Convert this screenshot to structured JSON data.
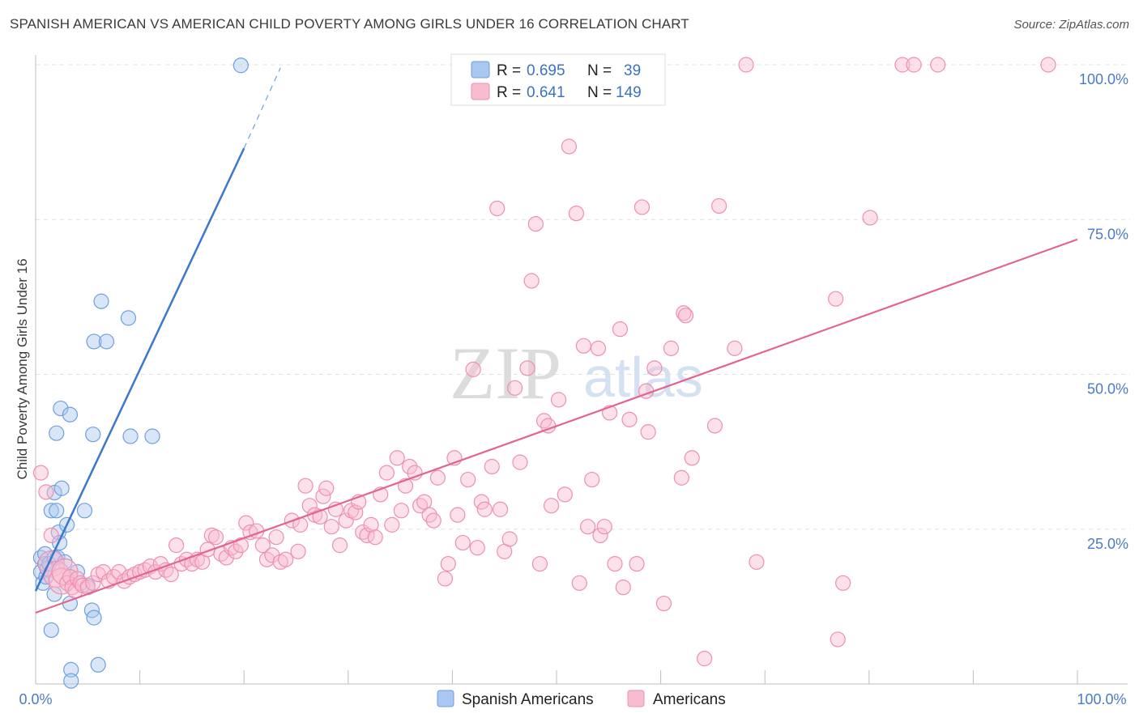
{
  "title": "SPANISH AMERICAN VS AMERICAN CHILD POVERTY AMONG GIRLS UNDER 16 CORRELATION CHART",
  "source": "Source: ZipAtlas.com",
  "watermark": {
    "zip": "ZIP",
    "atlas": "atlas"
  },
  "legend_box": {
    "rows": [
      {
        "r_label": "R =",
        "r_value": "0.695",
        "n_label": "N =",
        "n_value": "39",
        "color": "#a9c7f0",
        "stroke": "#6f9fde"
      },
      {
        "r_label": "R =",
        "r_value": "0.641",
        "n_label": "N =",
        "n_value": "149",
        "color": "#f8bcd0",
        "stroke": "#ee8fb0"
      }
    ]
  },
  "bottom_legend": [
    {
      "label": "Spanish Americans",
      "color": "#a9c7f0",
      "stroke": "#6f9fde"
    },
    {
      "label": "Americans",
      "color": "#f8bcd0",
      "stroke": "#ee8fb0"
    }
  ],
  "chart_data": {
    "type": "scatter",
    "title": "SPANISH AMERICAN VS AMERICAN CHILD POVERTY AMONG GIRLS UNDER 16 CORRELATION CHART",
    "xlabel": "",
    "ylabel": "Child Poverty Among Girls Under 16",
    "xlim": [
      0,
      100
    ],
    "ylim": [
      0,
      100
    ],
    "x_tick_labels": [
      "0.0%",
      "100.0%"
    ],
    "y_tick_labels": [
      "25.0%",
      "50.0%",
      "75.0%",
      "100.0%"
    ],
    "y_ticks": [
      25,
      50,
      75,
      100
    ],
    "grid": "horizontal dashed",
    "legend": "top-center",
    "series": [
      {
        "name": "Spanish Americans",
        "color": "#6f9fde",
        "fill": "#a9c7f0",
        "trend": {
          "x": [
            0,
            20
          ],
          "y": [
            15.0,
            86.5
          ],
          "dashed_to": [
            23.5,
            99.5
          ]
        },
        "points": [
          [
            0.5,
            20.4
          ],
          [
            0.5,
            18.1
          ],
          [
            0.7,
            16.3
          ],
          [
            0.9,
            19.4
          ],
          [
            0.9,
            21.0
          ],
          [
            1.0,
            17.3
          ],
          [
            1.1,
            18.6
          ],
          [
            1.3,
            19.4
          ],
          [
            1.5,
            8.7
          ],
          [
            1.5,
            28.0
          ],
          [
            1.8,
            20.4
          ],
          [
            1.8,
            14.5
          ],
          [
            1.8,
            30.9
          ],
          [
            2.0,
            40.5
          ],
          [
            2.0,
            28.0
          ],
          [
            2.1,
            20.4
          ],
          [
            2.2,
            24.5
          ],
          [
            2.3,
            22.8
          ],
          [
            2.4,
            44.5
          ],
          [
            2.5,
            31.6
          ],
          [
            2.8,
            19.7
          ],
          [
            3.0,
            25.7
          ],
          [
            3.3,
            43.5
          ],
          [
            3.3,
            13.0
          ],
          [
            3.4,
            2.3
          ],
          [
            3.4,
            0.5
          ],
          [
            4.0,
            18.1
          ],
          [
            4.7,
            28.0
          ],
          [
            5.0,
            15.9
          ],
          [
            5.4,
            11.9
          ],
          [
            5.5,
            40.3
          ],
          [
            5.6,
            10.7
          ],
          [
            5.6,
            55.3
          ],
          [
            6.0,
            3.1
          ],
          [
            6.3,
            61.8
          ],
          [
            6.8,
            55.3
          ],
          [
            8.9,
            59.1
          ],
          [
            9.1,
            40.0
          ],
          [
            11.2,
            40.0
          ],
          [
            19.7,
            99.9
          ]
        ]
      },
      {
        "name": "Americans",
        "color": "#ee8fb0",
        "fill": "#f8bcd0",
        "trend": {
          "x": [
            0,
            100
          ],
          "y": [
            11.5,
            71.8
          ]
        },
        "points": [
          [
            0.5,
            34.1
          ],
          [
            1.0,
            31.0
          ],
          [
            1.5,
            19.4
          ],
          [
            1.5,
            24.0
          ],
          [
            2.0,
            17.7
          ],
          [
            2.5,
            16.6
          ],
          [
            2.8,
            18.1
          ],
          [
            3.0,
            16.3
          ],
          [
            3.3,
            17.3
          ],
          [
            3.5,
            15.6
          ],
          [
            3.8,
            15.0
          ],
          [
            4.0,
            17.0
          ],
          [
            4.3,
            16.3
          ],
          [
            4.5,
            15.9
          ],
          [
            5.0,
            15.6
          ],
          [
            5.5,
            16.3
          ],
          [
            6.0,
            17.7
          ],
          [
            6.5,
            18.1
          ],
          [
            7.0,
            16.6
          ],
          [
            7.5,
            17.3
          ],
          [
            8.0,
            18.1
          ],
          [
            8.5,
            16.6
          ],
          [
            9.0,
            17.3
          ],
          [
            9.5,
            17.7
          ],
          [
            10.0,
            18.1
          ],
          [
            10.5,
            18.4
          ],
          [
            11.0,
            19.0
          ],
          [
            11.5,
            18.1
          ],
          [
            12.0,
            19.4
          ],
          [
            12.5,
            18.4
          ],
          [
            13.0,
            17.7
          ],
          [
            13.5,
            22.4
          ],
          [
            14.0,
            19.4
          ],
          [
            14.5,
            20.1
          ],
          [
            15.0,
            19.4
          ],
          [
            15.5,
            20.1
          ],
          [
            16.0,
            19.7
          ],
          [
            16.5,
            21.7
          ],
          [
            16.9,
            24.0
          ],
          [
            17.3,
            23.7
          ],
          [
            17.8,
            21.0
          ],
          [
            18.3,
            20.4
          ],
          [
            18.8,
            22.0
          ],
          [
            19.2,
            21.4
          ],
          [
            19.7,
            22.4
          ],
          [
            20.2,
            26.0
          ],
          [
            20.6,
            24.5
          ],
          [
            21.2,
            24.7
          ],
          [
            21.8,
            22.4
          ],
          [
            22.2,
            20.1
          ],
          [
            22.7,
            20.8
          ],
          [
            23.1,
            23.7
          ],
          [
            23.5,
            19.7
          ],
          [
            24.0,
            20.1
          ],
          [
            24.6,
            26.4
          ],
          [
            25.2,
            21.4
          ],
          [
            25.4,
            25.7
          ],
          [
            25.9,
            32.0
          ],
          [
            26.3,
            28.8
          ],
          [
            26.8,
            27.3
          ],
          [
            27.3,
            27.0
          ],
          [
            27.6,
            30.3
          ],
          [
            27.9,
            31.6
          ],
          [
            28.4,
            25.4
          ],
          [
            28.8,
            28.2
          ],
          [
            29.2,
            22.4
          ],
          [
            29.8,
            26.4
          ],
          [
            30.3,
            28.0
          ],
          [
            30.7,
            27.7
          ],
          [
            31.0,
            29.4
          ],
          [
            31.4,
            24.5
          ],
          [
            31.8,
            24.0
          ],
          [
            32.2,
            25.7
          ],
          [
            32.6,
            23.7
          ],
          [
            33.1,
            30.6
          ],
          [
            33.7,
            34.1
          ],
          [
            34.2,
            25.7
          ],
          [
            34.7,
            36.5
          ],
          [
            35.1,
            28.0
          ],
          [
            35.5,
            32.0
          ],
          [
            35.9,
            35.1
          ],
          [
            36.4,
            34.1
          ],
          [
            36.9,
            28.8
          ],
          [
            37.3,
            29.4
          ],
          [
            37.8,
            27.3
          ],
          [
            38.2,
            26.4
          ],
          [
            38.6,
            33.3
          ],
          [
            39.3,
            17.0
          ],
          [
            39.6,
            19.4
          ],
          [
            40.2,
            36.5
          ],
          [
            40.5,
            27.3
          ],
          [
            41.0,
            22.8
          ],
          [
            41.5,
            33.0
          ],
          [
            42.0,
            50.8
          ],
          [
            42.4,
            22.0
          ],
          [
            42.8,
            29.4
          ],
          [
            43.1,
            28.2
          ],
          [
            43.8,
            35.1
          ],
          [
            44.3,
            76.8
          ],
          [
            44.6,
            28.2
          ],
          [
            45.0,
            21.4
          ],
          [
            45.5,
            23.4
          ],
          [
            46.0,
            47.8
          ],
          [
            46.5,
            35.8
          ],
          [
            47.2,
            51.0
          ],
          [
            47.6,
            65.1
          ],
          [
            48.0,
            74.3
          ],
          [
            48.4,
            19.4
          ],
          [
            48.8,
            42.5
          ],
          [
            49.2,
            41.7
          ],
          [
            49.5,
            28.8
          ],
          [
            50.2,
            45.9
          ],
          [
            50.8,
            30.6
          ],
          [
            51.2,
            86.8
          ],
          [
            51.9,
            76.0
          ],
          [
            52.2,
            16.3
          ],
          [
            52.6,
            54.6
          ],
          [
            53.0,
            25.4
          ],
          [
            53.4,
            33.0
          ],
          [
            54.0,
            54.2
          ],
          [
            54.2,
            24.0
          ],
          [
            54.6,
            25.4
          ],
          [
            55.1,
            43.8
          ],
          [
            55.6,
            19.4
          ],
          [
            56.1,
            57.3
          ],
          [
            56.4,
            15.6
          ],
          [
            57.0,
            42.7
          ],
          [
            57.7,
            19.4
          ],
          [
            58.2,
            77.0
          ],
          [
            58.6,
            47.3
          ],
          [
            58.8,
            40.7
          ],
          [
            59.4,
            51.0
          ],
          [
            60.3,
            13.0
          ],
          [
            61.0,
            54.2
          ],
          [
            62.0,
            33.3
          ],
          [
            62.2,
            59.9
          ],
          [
            62.4,
            59.5
          ],
          [
            63.0,
            36.5
          ],
          [
            64.2,
            4.1
          ],
          [
            65.2,
            41.7
          ],
          [
            65.6,
            77.2
          ],
          [
            67.1,
            54.2
          ],
          [
            68.2,
            100.0
          ],
          [
            69.2,
            19.7
          ],
          [
            77.0,
            7.2
          ],
          [
            76.8,
            62.2
          ],
          [
            77.5,
            16.3
          ],
          [
            80.1,
            75.3
          ],
          [
            83.2,
            100.0
          ],
          [
            84.3,
            100.0
          ],
          [
            86.6,
            100.0
          ],
          [
            97.2,
            100.0
          ],
          [
            52.5,
            100.0
          ],
          [
            56.5,
            100.0
          ],
          [
            48.5,
            100.0
          ]
        ]
      }
    ]
  }
}
